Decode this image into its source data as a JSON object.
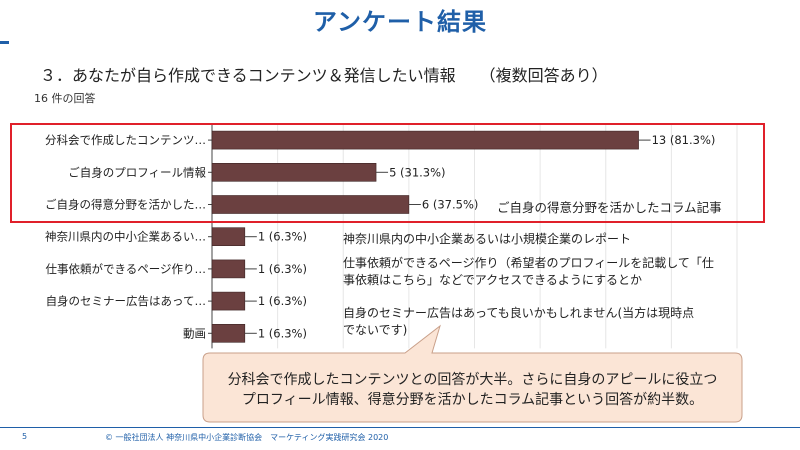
{
  "slide": {
    "title": "アンケート結果",
    "question": "３．あなたが自ら作成できるコンテンツ＆発信したい情報　　（複数回答あり）",
    "response_count": "16 件の回答"
  },
  "chart_data": {
    "type": "bar",
    "orientation": "horizontal",
    "categories": [
      "分科会で作成したコンテンツ…",
      "ご自身のプロフィール情報",
      "ご自身の得意分野を活かした…",
      "神奈川県内の中小企業あるい…",
      "仕事依頼ができるページ作り…",
      "自身のセミナー広告はあって…",
      "動画"
    ],
    "values": [
      13,
      5,
      6,
      1,
      1,
      1,
      1
    ],
    "value_labels": [
      "13 (81.3%)",
      "5 (31.3%)",
      "6 (37.5%)",
      "1 (6.3%)",
      "1 (6.3%)",
      "1 (6.3%)",
      "1 (6.3%)"
    ],
    "xlim": [
      0,
      16
    ],
    "grid": true,
    "bar_color": "#6b4040"
  },
  "notes": [
    "ご自身の得意分野を活かしたコラム記事",
    "神奈川県内の中小企業あるいは小規模企業のレポート",
    "仕事依頼ができるページ作り（希望者のプロフィールを記載して「仕",
    "事依頼はこちら」などでアクセスできるようにするとか",
    "自身のセミナー広告はあっても良いかもしれません(当方は現時点",
    "でないです)"
  ],
  "callout": {
    "line1": "分科会で作成したコンテンツとの回答が大半。さらに自身のアピールに役立つ",
    "line2": "プロフィール情報、得意分野を活かしたコラム記事という回答が約半数。",
    "fill": "#fbe5d6",
    "border": "#c9a08a"
  },
  "footer": {
    "page": "5",
    "copyright": "© 一般社団法人 神奈川県中小企業診断協会　マーケティング実践研究会 2020"
  },
  "colors": {
    "title": "#1f5fa8",
    "highlight": "#e0202a"
  }
}
